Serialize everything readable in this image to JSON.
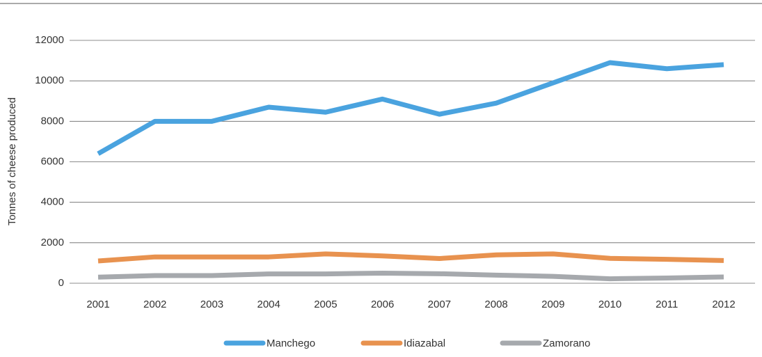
{
  "chart_data": {
    "type": "line",
    "y_label": "Tonnes of cheese produced",
    "categories": [
      "2001",
      "2002",
      "2003",
      "2004",
      "2005",
      "2006",
      "2007",
      "2008",
      "2009",
      "2010",
      "2011",
      "2012"
    ],
    "series": [
      {
        "name": "Manchego",
        "color": "#4aa3df",
        "values": [
          6400,
          8000,
          8000,
          8700,
          8450,
          9100,
          8350,
          8900,
          9900,
          10900,
          10600,
          10800
        ]
      },
      {
        "name": "Idiazabal",
        "color": "#e8924f",
        "values": [
          1100,
          1300,
          1300,
          1300,
          1450,
          1350,
          1220,
          1400,
          1450,
          1230,
          1180,
          1120
        ]
      },
      {
        "name": "Zamorano",
        "color": "#a6a9ad",
        "values": [
          300,
          380,
          380,
          460,
          460,
          500,
          470,
          400,
          340,
          220,
          260,
          310
        ]
      }
    ],
    "ylim": [
      0,
      12000
    ],
    "yticks": [
      0,
      2000,
      4000,
      6000,
      8000,
      10000,
      12000
    ],
    "grid": true,
    "legend": "bottom"
  }
}
